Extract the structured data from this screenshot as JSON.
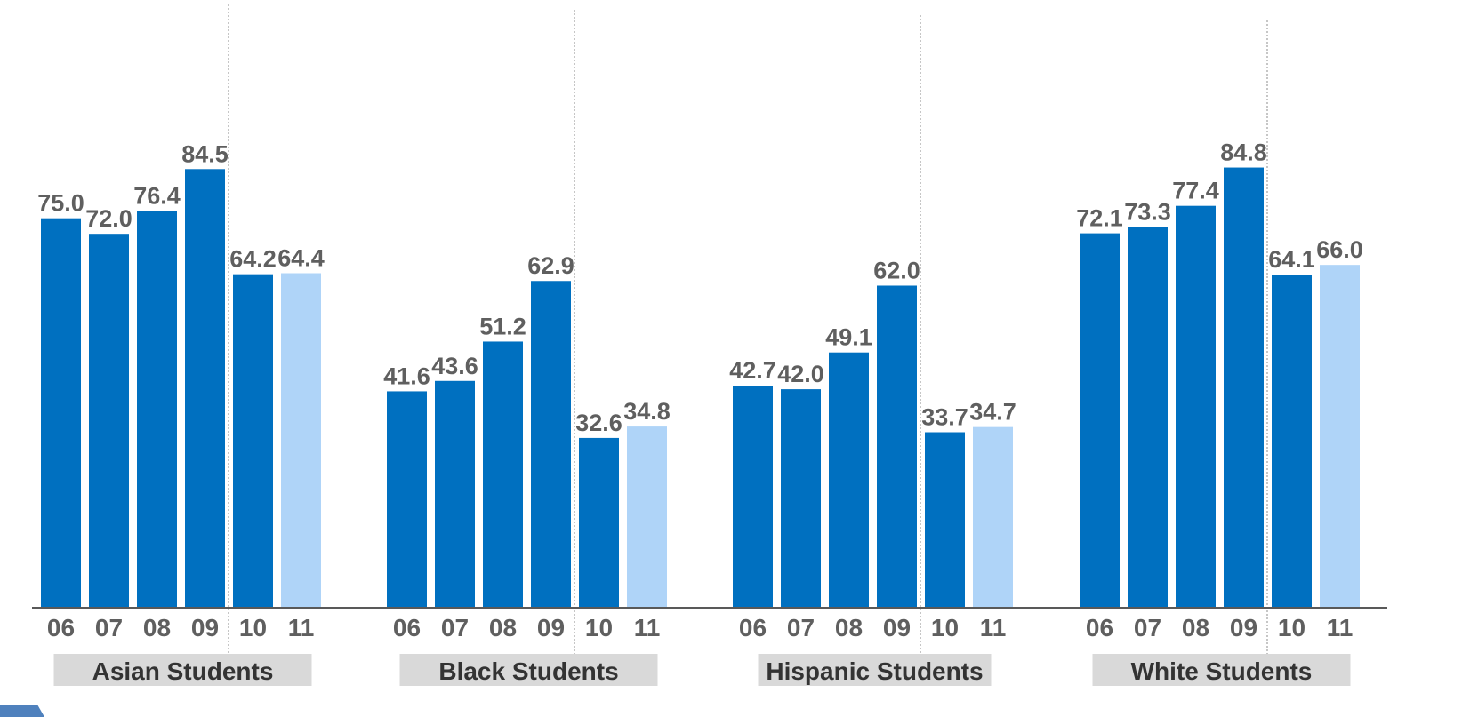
{
  "chart_data": {
    "type": "bar",
    "title": "",
    "xlabel": "",
    "ylabel": "",
    "ylim": [
      0,
      100
    ],
    "grid": false,
    "legend": "none",
    "groups": [
      {
        "name": "Asian Students",
        "categories": [
          "06",
          "07",
          "08",
          "09",
          "10",
          "11"
        ],
        "values": [
          75.0,
          72.0,
          76.4,
          84.5,
          64.2,
          64.4
        ],
        "labels": [
          "75.0",
          "72.0",
          "76.4",
          "84.5",
          "64.2",
          "64.4"
        ]
      },
      {
        "name": "Black Students",
        "categories": [
          "06",
          "07",
          "08",
          "09",
          "10",
          "11"
        ],
        "values": [
          41.6,
          43.6,
          51.2,
          62.9,
          32.6,
          34.8
        ],
        "labels": [
          "41.6",
          "43.6",
          "51.2",
          "62.9",
          "32.6",
          "34.8"
        ]
      },
      {
        "name": "Hispanic Students",
        "categories": [
          "06",
          "07",
          "08",
          "09",
          "10",
          "11"
        ],
        "values": [
          42.7,
          42.0,
          49.1,
          62.0,
          33.7,
          34.7
        ],
        "labels": [
          "42.7",
          "42.0",
          "49.1",
          "62.0",
          "33.7",
          "34.7"
        ]
      },
      {
        "name": "White Students",
        "categories": [
          "06",
          "07",
          "08",
          "09",
          "10",
          "11"
        ],
        "values": [
          72.1,
          73.3,
          77.4,
          84.8,
          64.1,
          66.0
        ],
        "labels": [
          "72.1",
          "73.3",
          "77.4",
          "84.8",
          "64.1",
          "66.0"
        ]
      }
    ],
    "colors": {
      "primary_bar": "#0070c0",
      "highlight_bar": "#afd4f8",
      "value_label": "#5f5f5f",
      "group_label_bg": "#d9d9d9",
      "axis": "#595959",
      "divider": "#8c8c8c"
    },
    "highlight_category": "11"
  }
}
